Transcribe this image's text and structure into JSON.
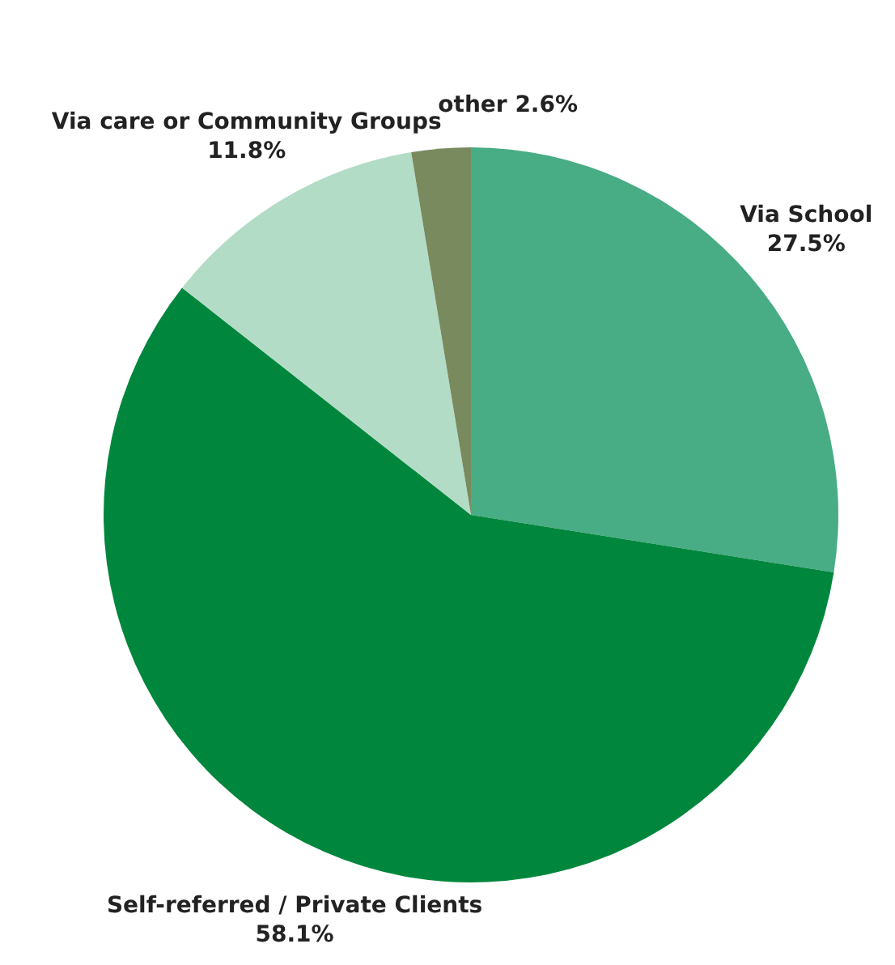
{
  "chart_data": {
    "type": "pie",
    "categories": [
      "Via School",
      "Self-referred / Private Clients",
      "Via care or Community Groups",
      "other"
    ],
    "values": [
      27.5,
      58.1,
      11.8,
      2.6
    ],
    "colors": [
      "#48ac84",
      "#00873d",
      "#b3dcc7",
      "#798a5e"
    ],
    "value_labels": [
      "27.5%",
      "58.1%",
      "11.8%",
      "2.6%"
    ],
    "legend": false
  }
}
